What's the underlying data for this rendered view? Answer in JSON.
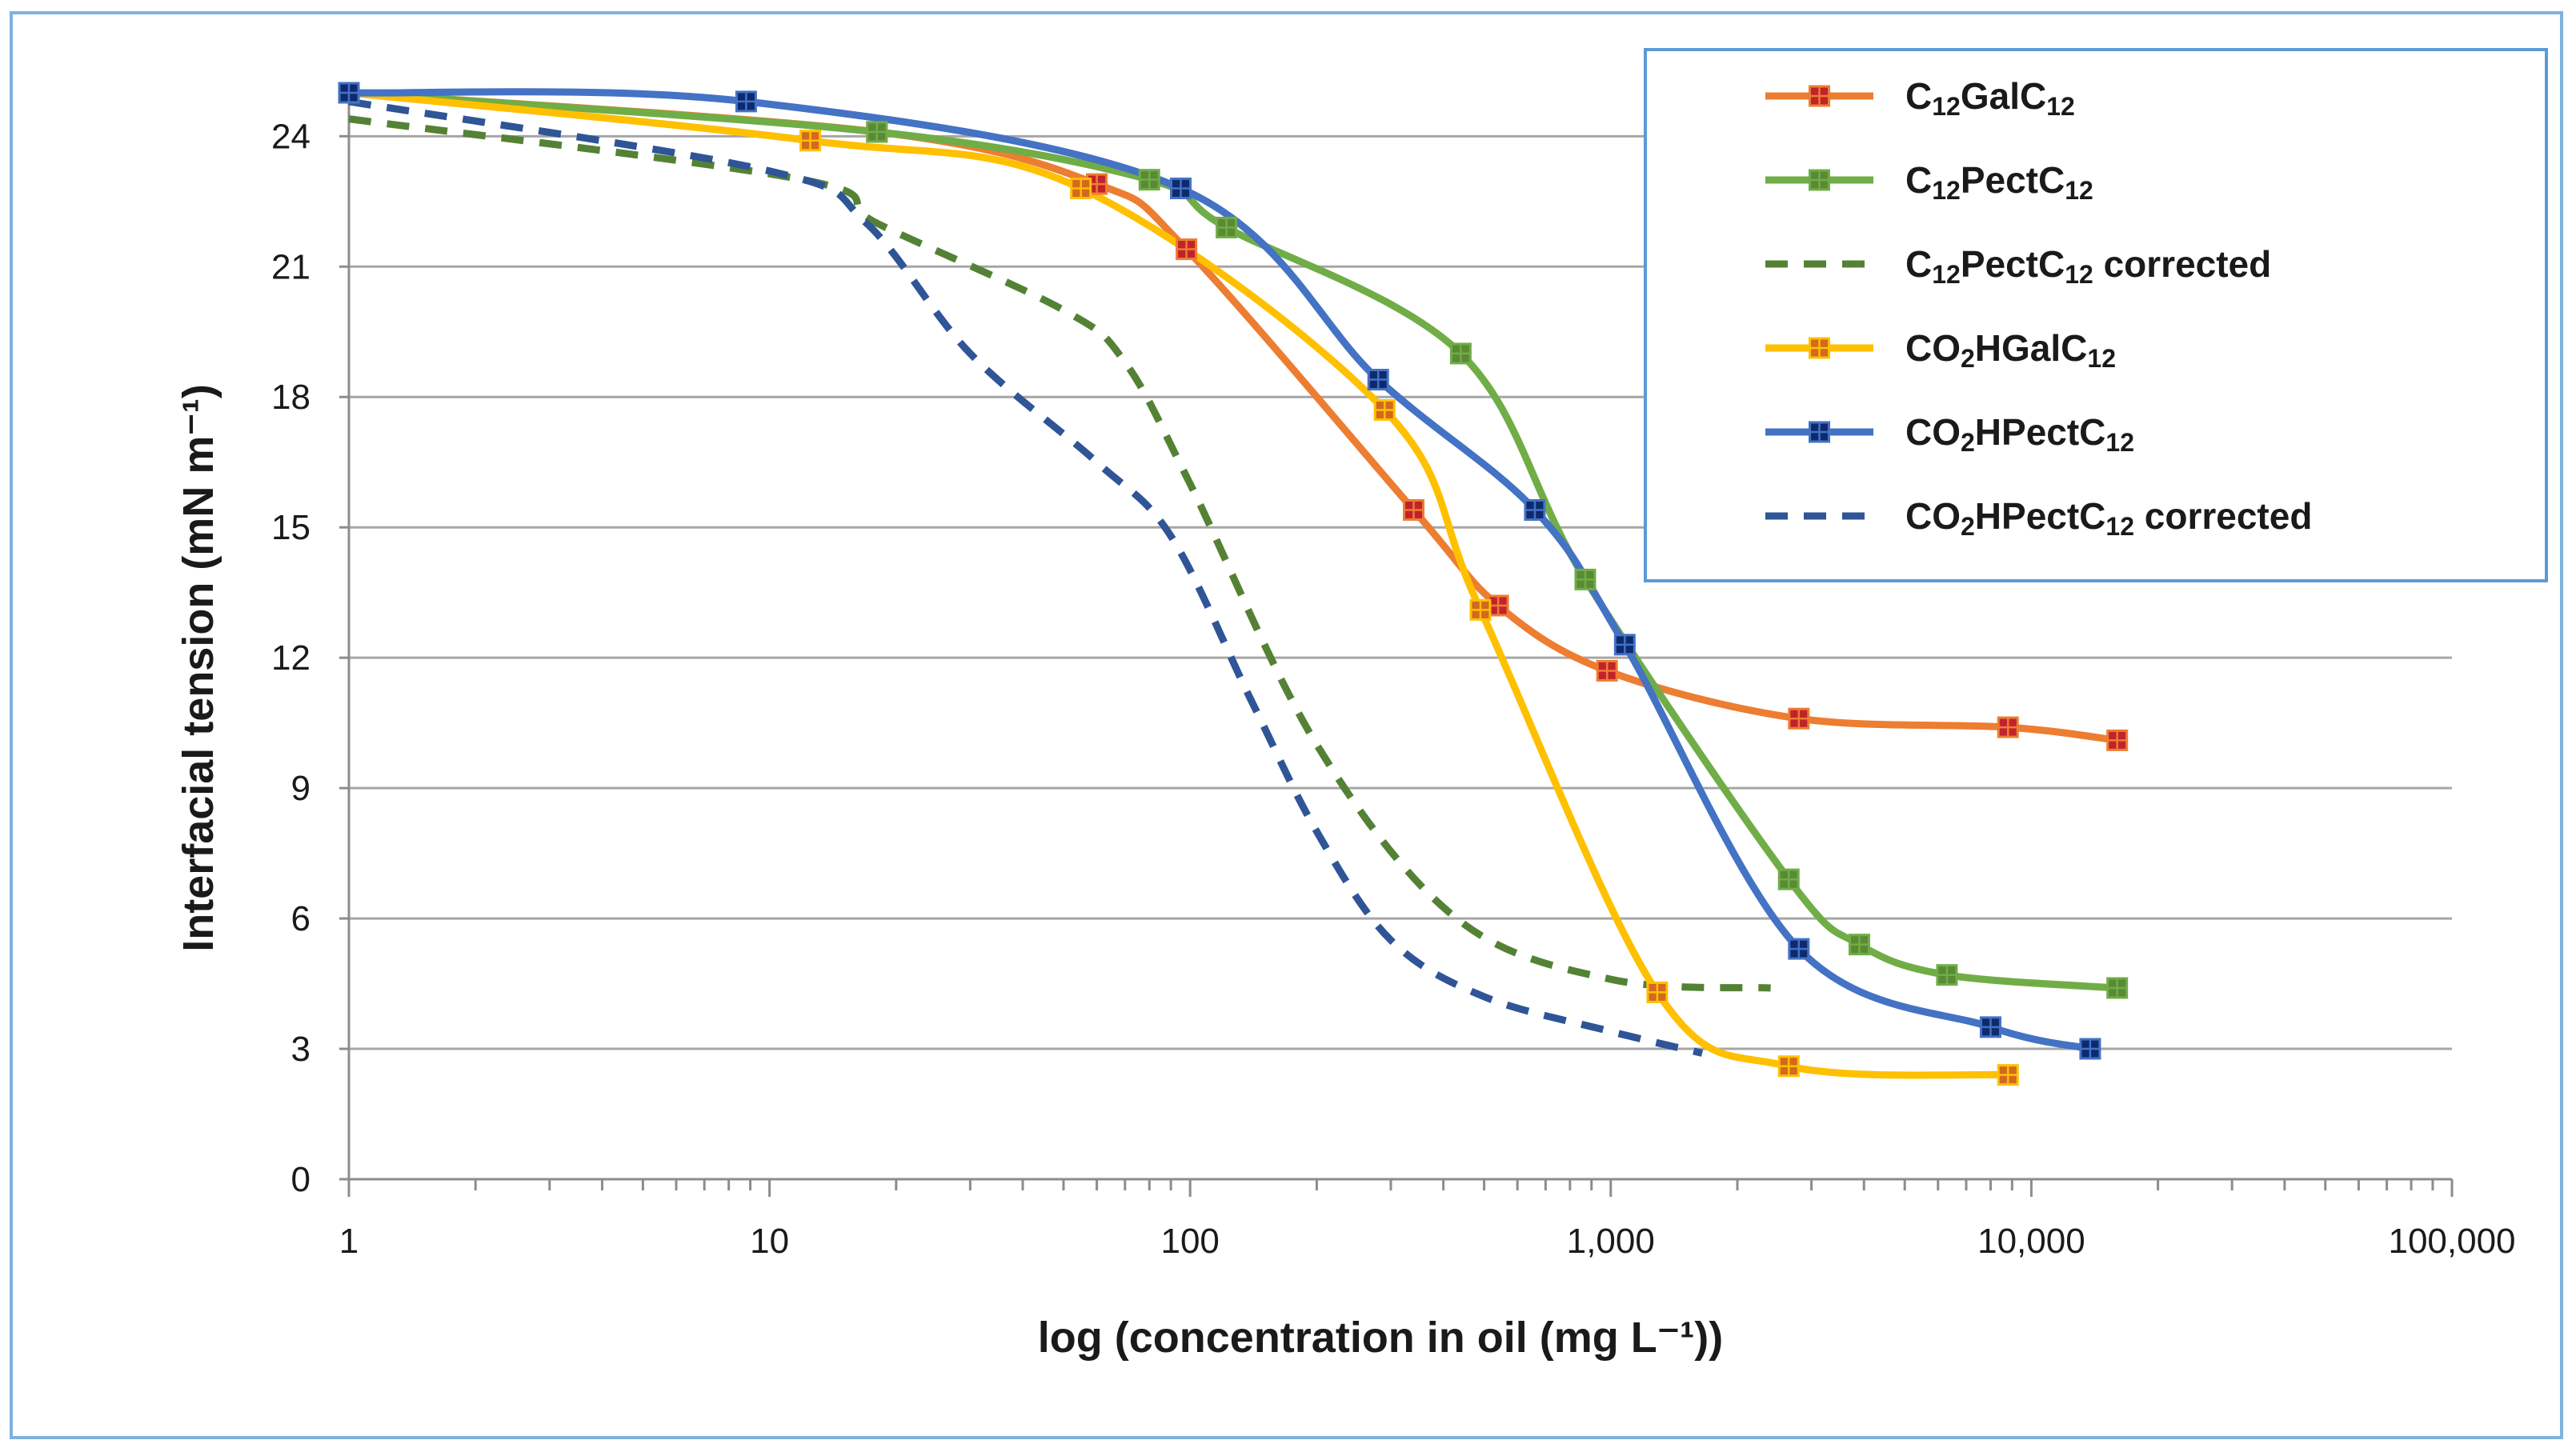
{
  "chart_data": {
    "type": "line",
    "title": "",
    "xlabel": "log (concentration in oil (mg L⁻¹))",
    "ylabel": "Interfacial tension (mN m⁻¹)",
    "xscale": "log",
    "xlim": [
      1,
      100000
    ],
    "ylim": [
      0,
      25
    ],
    "y_ticks": [
      0,
      3,
      6,
      9,
      12,
      15,
      18,
      21,
      24
    ],
    "x_ticks": [
      1,
      10,
      100,
      1000,
      10000,
      100000
    ],
    "x_tick_labels": [
      "1",
      "10",
      "100",
      "1,000",
      "10,000",
      "100,000"
    ],
    "grid": "horizontal",
    "legend_position": "top-right",
    "series": [
      {
        "name": "C12GalC12",
        "legend_parts": [
          [
            "C",
            "n"
          ],
          [
            "12",
            "sub"
          ],
          [
            "GalC",
            "n"
          ],
          [
            "12",
            "sub"
          ]
        ],
        "color": "#ed7d31",
        "marker_fill": "#c0232c",
        "dashed": false,
        "points": [
          [
            1,
            25.0
          ],
          [
            18,
            24.1
          ],
          [
            60,
            22.9
          ],
          [
            98,
            21.4
          ],
          [
            340,
            15.4
          ],
          [
            540,
            13.2
          ],
          [
            980,
            11.7
          ],
          [
            2800,
            10.6
          ],
          [
            8800,
            10.4
          ],
          [
            16000,
            10.1
          ]
        ],
        "show_markers": true
      },
      {
        "name": "C12PectC12",
        "legend_parts": [
          [
            "C",
            "n"
          ],
          [
            "12",
            "sub"
          ],
          [
            "PectC",
            "n"
          ],
          [
            "12",
            "sub"
          ]
        ],
        "color": "#70ad47",
        "marker_fill": "#5a8a35",
        "dashed": false,
        "points": [
          [
            1,
            25.0
          ],
          [
            18,
            24.1
          ],
          [
            80,
            23.0
          ],
          [
            122,
            21.9
          ],
          [
            440,
            19.0
          ],
          [
            870,
            13.8
          ],
          [
            2650,
            6.9
          ],
          [
            3900,
            5.4
          ],
          [
            6300,
            4.7
          ],
          [
            16000,
            4.4
          ]
        ],
        "show_markers": true
      },
      {
        "name": "C12PectC12 corrected",
        "legend_parts": [
          [
            "C",
            "n"
          ],
          [
            "12",
            "sub"
          ],
          [
            "PectC",
            "n"
          ],
          [
            "12",
            "sub"
          ],
          [
            " corrected",
            "n"
          ]
        ],
        "color": "#548235",
        "marker_fill": "",
        "dashed": true,
        "points": [
          [
            1,
            24.4
          ],
          [
            12,
            23.0
          ],
          [
            18,
            22.0
          ],
          [
            50,
            20.0
          ],
          [
            70,
            18.8
          ],
          [
            100,
            16.0
          ],
          [
            200,
            10.0
          ],
          [
            430,
            6.0
          ],
          [
            1000,
            4.6
          ],
          [
            2400,
            4.4
          ]
        ],
        "show_markers": false
      },
      {
        "name": "CO2HGalC12",
        "legend_parts": [
          [
            "CO",
            "n"
          ],
          [
            "2",
            "sub"
          ],
          [
            "HGalC",
            "n"
          ],
          [
            "12",
            "sub"
          ]
        ],
        "color": "#ffc000",
        "marker_fill": "#d2691e",
        "dashed": false,
        "points": [
          [
            1,
            25.0
          ],
          [
            12.5,
            23.9
          ],
          [
            55,
            22.8
          ],
          [
            290,
            17.7
          ],
          [
            490,
            13.1
          ],
          [
            1290,
            4.3
          ],
          [
            2650,
            2.6
          ],
          [
            8800,
            2.4
          ]
        ],
        "show_markers": true
      },
      {
        "name": "CO2HPectC12",
        "legend_parts": [
          [
            "CO",
            "n"
          ],
          [
            "2",
            "sub"
          ],
          [
            "HPectC",
            "n"
          ],
          [
            "12",
            "sub"
          ]
        ],
        "color": "#4472c4",
        "marker_fill": "#0e2a6e",
        "dashed": false,
        "points": [
          [
            1,
            25.0
          ],
          [
            8.8,
            24.8
          ],
          [
            95,
            22.8
          ],
          [
            280,
            18.4
          ],
          [
            660,
            15.4
          ],
          [
            1080,
            12.3
          ],
          [
            2800,
            5.3
          ],
          [
            8000,
            3.5
          ],
          [
            13800,
            3.0
          ]
        ],
        "show_markers": true
      },
      {
        "name": "CO2HPectC12 corrected",
        "legend_parts": [
          [
            "CO",
            "n"
          ],
          [
            "2",
            "sub"
          ],
          [
            "HPectC",
            "n"
          ],
          [
            "12",
            "sub"
          ],
          [
            " corrected",
            "n"
          ]
        ],
        "color": "#2f5597",
        "marker_fill": "",
        "dashed": true,
        "points": [
          [
            1,
            24.8
          ],
          [
            10,
            23.2
          ],
          [
            17,
            22.0
          ],
          [
            30,
            19.0
          ],
          [
            60,
            16.5
          ],
          [
            90,
            14.8
          ],
          [
            140,
            11.0
          ],
          [
            200,
            8.0
          ],
          [
            300,
            5.5
          ],
          [
            500,
            4.2
          ],
          [
            1000,
            3.4
          ],
          [
            1650,
            2.9
          ]
        ],
        "show_markers": false
      }
    ]
  }
}
